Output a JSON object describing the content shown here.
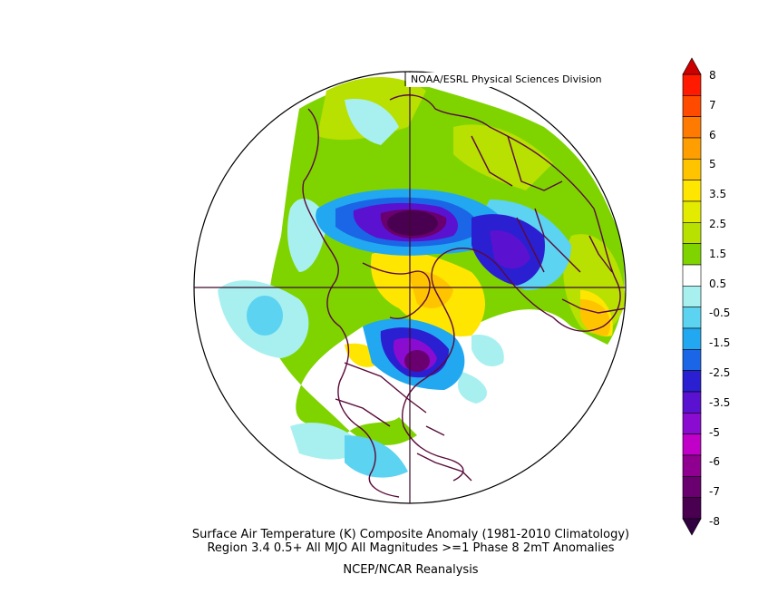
{
  "header": {
    "credit": "NOAA/ESRL Physical Sciences Division"
  },
  "caption": {
    "line1": "Surface Air Temperature (K) Composite Anomaly (1981-2010 Climatology)",
    "line2": "Region 3.4 0.5+ All MJO All Magnitudes >=1 Phase 8 2mT  Anomalies",
    "line3": "NCEP/NCAR Reanalysis"
  },
  "colorbar": {
    "labels": [
      "8",
      "7",
      "6",
      "5",
      "3.5",
      "2.5",
      "1.5",
      "0.5",
      "-0.5",
      "-1.5",
      "-2.5",
      "-3.5",
      "-5",
      "-6",
      "-7",
      "-8"
    ],
    "colors": [
      "#ff1a00",
      "#ff4a00",
      "#ff7a00",
      "#ff9e00",
      "#ffc400",
      "#ffe600",
      "#e3ec00",
      "#b8e000",
      "#7fd400",
      "#ffffff",
      "#a8f0f0",
      "#5cd3f0",
      "#22a8f0",
      "#1a66e6",
      "#2a1fd1",
      "#5a12d0",
      "#8a0cd0",
      "#c000c8",
      "#900090",
      "#6a0070",
      "#4a0050"
    ]
  }
}
